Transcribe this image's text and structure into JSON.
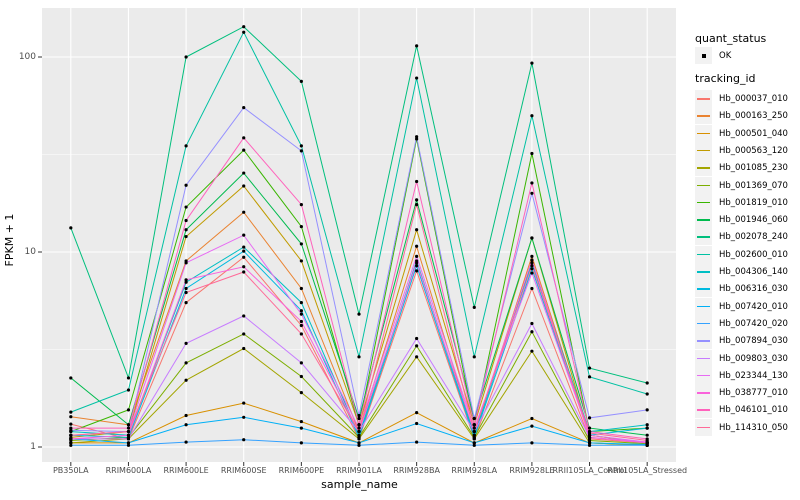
{
  "figure": {
    "panel_background": "#EBEBEB",
    "gridline_color": "#FFFFFF",
    "tick_mark_color": "#333333",
    "axis_text_color": "#4D4D4D",
    "point_color": "#000000",
    "legend_key_background": "#F2F2F2"
  },
  "axes": {
    "x_title": "sample_name",
    "y_title": "FPKM + 1",
    "y_ticks": [
      {
        "label": "1",
        "value": 1
      },
      {
        "label": "10",
        "value": 10
      },
      {
        "label": "100",
        "value": 100
      }
    ],
    "y_minor_gridlines": [
      3.1623,
      31.623
    ]
  },
  "legend": {
    "quant_status_title": "quant_status",
    "quant_status_items": [
      {
        "label": "OK"
      }
    ],
    "tracking_id_title": "tracking_id"
  },
  "chart_data": {
    "type": "line",
    "y_scale": "log10",
    "xlabel": "sample_name",
    "ylabel": "FPKM + 1",
    "ylim": [
      0.84,
      178
    ],
    "grid": true,
    "legend_position": "right",
    "x_categories": [
      "PB350LA",
      "RRIM600LA",
      "RRIM600LE",
      "RRIM600SE",
      "RRIM600PE",
      "RRIM901LA",
      "RRIM928BA",
      "RRIM928LA",
      "RRIM928LE",
      "RRII105LA_Control",
      "RRII105LA_Stressed"
    ],
    "series": [
      {
        "name": "Hb_000037_010",
        "color": "#F8766D",
        "values": [
          1.31,
          1.1,
          5.5,
          9.4,
          4.2,
          1.1,
          8.0,
          1.1,
          6.5,
          1.1,
          1.05
        ]
      },
      {
        "name": "Hb_000163_250",
        "color": "#EA8331",
        "values": [
          1.43,
          1.3,
          9.0,
          16.0,
          6.5,
          1.2,
          10.7,
          1.15,
          9.5,
          1.15,
          1.05
        ]
      },
      {
        "name": "Hb_000501_040",
        "color": "#D89000",
        "values": [
          1.05,
          1.05,
          1.45,
          1.68,
          1.35,
          1.05,
          1.5,
          1.05,
          1.4,
          1.05,
          1.02
        ]
      },
      {
        "name": "Hb_000563_120",
        "color": "#C09B00",
        "values": [
          1.12,
          1.2,
          12.0,
          21.8,
          9.0,
          1.3,
          13.0,
          1.3,
          11.8,
          1.15,
          1.05
        ]
      },
      {
        "name": "Hb_001085_230",
        "color": "#A3A500",
        "values": [
          1.05,
          1.1,
          2.2,
          3.2,
          1.9,
          1.1,
          2.9,
          1.1,
          3.1,
          1.05,
          1.02
        ]
      },
      {
        "name": "Hb_001369_070",
        "color": "#7CAE00",
        "values": [
          1.08,
          1.12,
          2.7,
          3.8,
          2.3,
          1.12,
          3.3,
          1.12,
          3.9,
          1.08,
          1.04
        ]
      },
      {
        "name": "Hb_001819_010",
        "color": "#39B600",
        "values": [
          1.2,
          1.55,
          17.0,
          33.3,
          13.5,
          1.3,
          38.0,
          1.3,
          32.0,
          1.2,
          1.25
        ]
      },
      {
        "name": "Hb_001946_060",
        "color": "#00BB4E",
        "values": [
          2.26,
          1.3,
          13.0,
          25.4,
          11.0,
          1.4,
          18.5,
          1.4,
          11.8,
          1.25,
          1.15
        ]
      },
      {
        "name": "Hb_002078_240",
        "color": "#00BF7D",
        "values": [
          13.3,
          2.26,
          100.0,
          143.0,
          75.0,
          4.8,
          114.0,
          5.2,
          93.0,
          2.54,
          2.13
        ]
      },
      {
        "name": "Hb_002600_010",
        "color": "#00C1A3",
        "values": [
          1.51,
          1.96,
          35.0,
          134.0,
          35.0,
          2.9,
          78.0,
          2.9,
          50.0,
          2.29,
          1.87
        ]
      },
      {
        "name": "Hb_004306_140",
        "color": "#00BFC4",
        "values": [
          1.2,
          1.15,
          7.0,
          10.6,
          5.5,
          1.15,
          9.0,
          1.15,
          8.8,
          1.2,
          1.3
        ]
      },
      {
        "name": "Hb_006316_030",
        "color": "#00BAE0",
        "values": [
          1.15,
          1.12,
          6.5,
          10.1,
          5.0,
          1.12,
          8.5,
          1.12,
          8.2,
          1.15,
          1.25
        ]
      },
      {
        "name": "Hb_007420_010",
        "color": "#00B0F6",
        "values": [
          1.1,
          1.05,
          1.3,
          1.42,
          1.25,
          1.05,
          1.32,
          1.05,
          1.28,
          1.05,
          1.03
        ]
      },
      {
        "name": "Hb_007420_020",
        "color": "#35A2FF",
        "values": [
          1.02,
          1.02,
          1.06,
          1.09,
          1.05,
          1.02,
          1.06,
          1.02,
          1.05,
          1.02,
          1.02
        ]
      },
      {
        "name": "Hb_007894_030",
        "color": "#9590FF",
        "values": [
          1.22,
          1.2,
          22.0,
          55.0,
          33.0,
          1.45,
          39.0,
          1.4,
          20.0,
          1.41,
          1.55
        ]
      },
      {
        "name": "Hb_009803_030",
        "color": "#C77CFF",
        "values": [
          1.1,
          1.1,
          3.4,
          4.7,
          2.7,
          1.2,
          3.6,
          1.2,
          4.3,
          1.12,
          1.06
        ]
      },
      {
        "name": "Hb_023344_130",
        "color": "#E76BF3",
        "values": [
          1.15,
          1.2,
          8.8,
          12.2,
          4.8,
          1.25,
          9.5,
          1.25,
          7.8,
          1.15,
          1.06
        ]
      },
      {
        "name": "Hb_038777_010",
        "color": "#FA62DB",
        "values": [
          1.1,
          1.15,
          7.2,
          8.4,
          4.4,
          1.2,
          8.8,
          1.2,
          9.1,
          1.12,
          1.05
        ]
      },
      {
        "name": "Hb_046101_010",
        "color": "#FF62BC",
        "values": [
          1.25,
          1.25,
          14.5,
          38.5,
          17.5,
          1.3,
          23.0,
          1.3,
          22.6,
          1.2,
          1.1
        ]
      },
      {
        "name": "Hb_114310_050",
        "color": "#FF6A98",
        "values": [
          1.15,
          1.2,
          6.2,
          7.9,
          3.8,
          1.2,
          17.5,
          1.2,
          8.5,
          1.18,
          1.08
        ]
      }
    ]
  }
}
